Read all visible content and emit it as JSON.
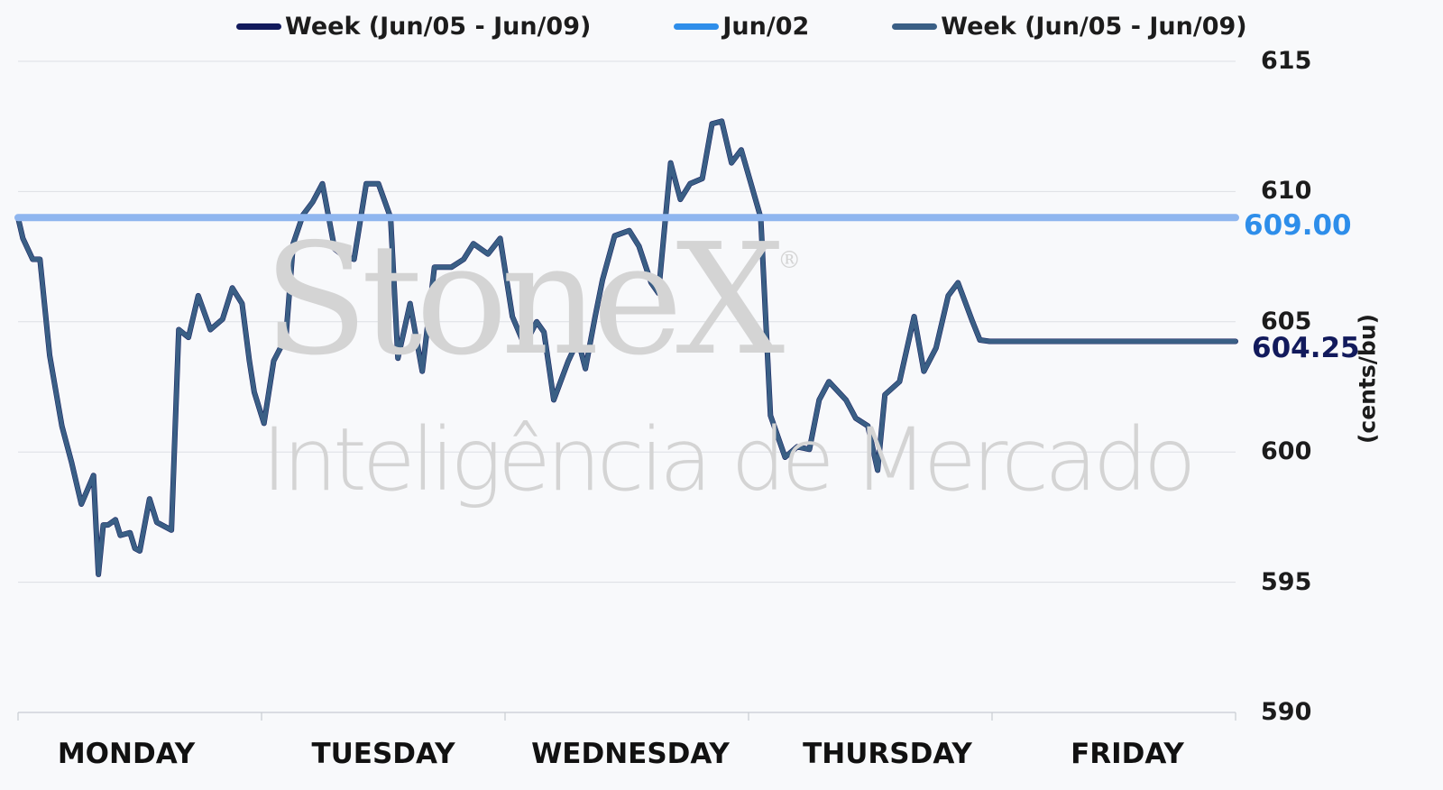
{
  "watermark": {
    "brand": "StoneX",
    "registered": "®",
    "tagline": "Inteligência de Mercado"
  },
  "legend": [
    {
      "label": "Week (Jun/05 - Jun/09)",
      "color": "#121a5c"
    },
    {
      "label": "Jun/02",
      "color": "#2e8eea"
    },
    {
      "label": "Week (Jun/05 - Jun/09)",
      "color": "#3a5f85"
    }
  ],
  "value_labels": {
    "jun02": {
      "text": "609.00",
      "color": "#2e8eea"
    },
    "last": {
      "text": "604.25",
      "color": "#121a5c"
    }
  },
  "chart_data": {
    "type": "line",
    "ylabel": "(cents/bu)",
    "ylim": [
      590,
      615
    ],
    "yticks": [
      615,
      610,
      605,
      600,
      595,
      590
    ],
    "categories": [
      "MONDAY",
      "TUESDAY",
      "WEDNESDAY",
      "THURSDAY",
      "FRIDAY"
    ],
    "xlim": [
      0,
      5
    ],
    "grid": true,
    "legend_position": "top",
    "series": [
      {
        "name": "Week (Jun/05 - Jun/09)",
        "color": "#121a5c",
        "x": [
          0.0,
          0.02,
          0.06,
          0.09,
          0.13,
          0.18,
          0.22,
          0.26,
          0.31,
          0.33,
          0.35,
          0.37,
          0.4,
          0.42,
          0.46,
          0.48,
          0.5,
          0.54,
          0.57,
          0.63,
          0.66,
          0.7,
          0.74,
          0.79,
          0.84,
          0.88,
          0.92,
          0.95,
          0.97,
          1.01,
          1.05,
          1.1,
          1.13,
          1.17,
          1.21,
          1.25,
          1.3,
          1.34,
          1.38,
          1.43,
          1.48,
          1.53,
          1.56,
          1.61,
          1.66,
          1.71,
          1.74,
          1.78,
          1.83,
          1.87,
          1.93,
          1.98,
          2.03,
          2.08,
          2.13,
          2.16,
          2.2,
          2.26,
          2.3,
          2.33,
          2.37,
          2.4,
          2.45,
          2.51,
          2.55,
          2.6,
          2.63,
          2.68,
          2.72,
          2.76,
          2.81,
          2.85,
          2.89,
          2.93,
          2.97,
          3.01,
          3.05,
          3.09,
          3.15,
          3.2,
          3.25,
          3.29,
          3.33,
          3.4,
          3.44,
          3.49,
          3.53,
          3.56,
          3.62,
          3.68,
          3.72,
          3.77,
          3.82,
          3.86,
          3.92,
          3.95,
          3.99,
          4.04,
          4.06,
          4.09,
          4.14,
          4.17,
          4.21,
          4.25,
          4.3,
          4.35,
          4.39,
          4.43,
          4.48,
          4.52,
          4.57,
          4.62,
          4.66,
          4.71,
          4.75,
          4.79,
          4.84,
          4.88,
          4.92,
          4.97,
          5.0
        ],
        "y": [
          609.0,
          608.2,
          607.4,
          607.4,
          603.7,
          601.0,
          599.6,
          598.0,
          599.1,
          595.3,
          597.2,
          597.2,
          597.4,
          596.8,
          596.9,
          596.3,
          596.2,
          598.2,
          597.3,
          597.0,
          604.7,
          604.4,
          606.0,
          604.7,
          605.1,
          606.3,
          605.7,
          603.5,
          602.3,
          601.1,
          603.5,
          604.4,
          608.0,
          609.1,
          609.6,
          610.3,
          607.8,
          607.5,
          607.4,
          610.3,
          610.3,
          609.0,
          603.6,
          605.7,
          603.1,
          607.1,
          607.1,
          607.1,
          607.4,
          608.0,
          607.6,
          608.2,
          605.2,
          604.1,
          605.0,
          604.6,
          602.0,
          603.5,
          604.3,
          603.2,
          605.2,
          606.6,
          608.3,
          608.5,
          607.9,
          606.5,
          606.1,
          611.1,
          609.7,
          610.3,
          610.5,
          612.6,
          612.7,
          611.1,
          611.6,
          610.3,
          609.0,
          601.4,
          599.8,
          600.2,
          600.1,
          602.0,
          602.7,
          602.0,
          601.3,
          601.0,
          599.3,
          602.2,
          602.7,
          605.2,
          603.1,
          604.0,
          606.0,
          606.5,
          605.0,
          604.3,
          604.25,
          604.25,
          604.25,
          604.25,
          604.25,
          604.25,
          604.25,
          604.25,
          604.25,
          604.25,
          604.25,
          604.25,
          604.25,
          604.25,
          604.25,
          604.25,
          604.25,
          604.25,
          604.25,
          604.25,
          604.25,
          604.25,
          604.25,
          604.25,
          604.25
        ]
      },
      {
        "name": "Jun/02",
        "color": "#2e8eea",
        "x": [
          0,
          5
        ],
        "y": [
          609.0,
          609.0
        ]
      }
    ]
  }
}
